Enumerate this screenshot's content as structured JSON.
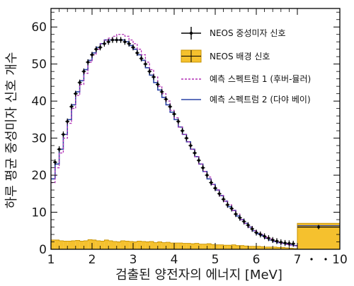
{
  "chart_data": {
    "type": "line",
    "xlabel": "검출된 양전자의 에너지 [MeV]",
    "ylabel": "하루 평균 중성미자 신호 개수",
    "xlim": [
      1,
      10
    ],
    "ylim": [
      0,
      65
    ],
    "x_ticks": [
      1,
      2,
      3,
      4,
      5,
      6,
      7,
      10
    ],
    "x_tick_labels": [
      "1",
      "2",
      "3",
      "4",
      "5",
      "6",
      "7",
      "10"
    ],
    "x_axis_note": "axis compressed between 7 and 10 (single last bin)",
    "y_ticks": [
      0,
      10,
      20,
      30,
      40,
      50,
      60
    ],
    "grid": false,
    "legend_position": "top-right",
    "colors": {
      "data": "#000000",
      "background_fill": "#f5c12e",
      "background_edge": "#c79200",
      "prediction_huber_mueller": "#b02fb5",
      "prediction_daya_bay": "#2a43a6"
    },
    "legend": [
      {
        "key": "data",
        "label": "NEOS 중성미자 신호",
        "style": "point-errorbar"
      },
      {
        "key": "background",
        "label": "NEOS 배경 신호",
        "style": "filled-box"
      },
      {
        "key": "huber_mueller",
        "label": "예측 스펙트럼 1 (후버-뮬러)",
        "style": "dashed-line"
      },
      {
        "key": "daya_bay",
        "label": "예측 스펙트럼 2 (다야 베이)",
        "style": "solid-step"
      }
    ],
    "series": [
      {
        "key": "data",
        "name": "NEOS 중성미자 신호",
        "x": [
          1.1,
          1.2,
          1.3,
          1.4,
          1.5,
          1.6,
          1.7,
          1.8,
          1.9,
          2.0,
          2.1,
          2.2,
          2.3,
          2.4,
          2.5,
          2.6,
          2.7,
          2.8,
          2.9,
          3.0,
          3.1,
          3.2,
          3.3,
          3.4,
          3.5,
          3.6,
          3.7,
          3.8,
          3.9,
          4.0,
          4.1,
          4.2,
          4.3,
          4.4,
          4.5,
          4.6,
          4.7,
          4.8,
          4.9,
          5.0,
          5.1,
          5.2,
          5.3,
          5.4,
          5.5,
          5.6,
          5.7,
          5.8,
          5.9,
          6.0,
          6.1,
          6.2,
          6.3,
          6.4,
          6.5,
          6.6,
          6.7,
          6.8,
          6.9,
          8.5
        ],
        "y": [
          23.5,
          27.0,
          31.0,
          34.5,
          38.5,
          42.0,
          45.0,
          48.0,
          50.5,
          52.5,
          54.0,
          54.5,
          55.5,
          56.0,
          56.5,
          56.5,
          56.5,
          56.0,
          55.5,
          54.5,
          53.0,
          51.5,
          50.0,
          48.0,
          46.5,
          44.5,
          42.5,
          40.5,
          38.5,
          36.5,
          34.5,
          32.0,
          30.0,
          28.0,
          26.0,
          24.0,
          22.0,
          20.0,
          18.0,
          16.5,
          15.0,
          13.5,
          12.0,
          11.0,
          9.5,
          8.5,
          7.5,
          6.5,
          5.5,
          4.5,
          4.0,
          3.5,
          3.0,
          2.5,
          2.2,
          1.9,
          1.7,
          1.6,
          1.5,
          6.0
        ]
      },
      {
        "key": "background",
        "name": "NEOS 배경 신호",
        "x": [
          1.05,
          1.15,
          1.25,
          1.35,
          1.45,
          1.55,
          1.65,
          1.75,
          1.85,
          1.95,
          2.05,
          2.15,
          2.25,
          2.35,
          2.45,
          2.55,
          2.65,
          2.75,
          2.85,
          2.95,
          3.05,
          3.15,
          3.25,
          3.35,
          3.45,
          3.55,
          3.65,
          3.75,
          3.85,
          3.95,
          4.05,
          4.15,
          4.25,
          4.35,
          4.45,
          4.55,
          4.65,
          4.75,
          4.85,
          4.95,
          5.05,
          5.15,
          5.25,
          5.35,
          5.45,
          5.55,
          5.65,
          5.75,
          5.85,
          5.95,
          6.05,
          6.15,
          6.25,
          6.35,
          6.45,
          6.55,
          6.65,
          6.75,
          6.85,
          6.95,
          8.5
        ],
        "y": [
          2.5,
          2.5,
          2.3,
          2.2,
          2.2,
          2.3,
          2.4,
          2.2,
          2.3,
          2.6,
          2.5,
          2.3,
          2.2,
          2.5,
          2.3,
          2.1,
          2.0,
          2.3,
          2.2,
          2.1,
          2.0,
          2.2,
          2.1,
          2.0,
          2.1,
          1.8,
          2.0,
          1.8,
          1.9,
          1.7,
          1.7,
          1.7,
          1.6,
          1.6,
          1.5,
          1.6,
          1.4,
          1.4,
          1.5,
          1.3,
          1.2,
          1.2,
          1.1,
          1.1,
          1.2,
          1.0,
          1.0,
          0.9,
          0.8,
          0.8,
          0.8,
          0.7,
          0.6,
          0.6,
          0.6,
          0.5,
          0.5,
          0.4,
          0.3,
          0.2,
          7.0
        ]
      },
      {
        "key": "huber_mueller",
        "name": "예측 스펙트럼 1 (후버-뮬러)",
        "x": [
          1.0,
          1.1,
          1.2,
          1.3,
          1.4,
          1.5,
          1.6,
          1.7,
          1.8,
          1.9,
          2.0,
          2.1,
          2.2,
          2.3,
          2.4,
          2.5,
          2.6,
          2.7,
          2.8,
          2.9,
          3.0,
          3.1,
          3.2,
          3.3,
          3.4,
          3.5,
          3.6,
          3.7,
          3.8,
          3.9,
          4.0,
          4.1,
          4.2,
          4.3,
          4.4,
          4.5,
          4.6,
          4.7,
          4.8,
          4.9,
          5.0,
          5.1,
          5.2,
          5.3,
          5.4,
          5.5,
          5.6,
          5.7,
          5.8,
          5.9,
          6.0,
          6.1,
          6.2,
          6.3,
          6.4,
          6.5,
          6.6,
          6.7,
          6.8,
          6.9,
          7.0
        ],
        "y": [
          18.0,
          22.0,
          26.0,
          30.0,
          34.0,
          38.0,
          41.5,
          44.5,
          47.5,
          50.5,
          52.5,
          54.0,
          55.5,
          56.5,
          57.0,
          57.5,
          58.0,
          58.0,
          57.5,
          56.5,
          55.5,
          54.0,
          52.5,
          50.5,
          48.5,
          46.5,
          44.0,
          42.0,
          40.0,
          37.5,
          35.5,
          33.0,
          31.0,
          29.0,
          27.0,
          25.0,
          23.0,
          21.0,
          19.5,
          17.5,
          16.0,
          14.5,
          13.0,
          12.0,
          10.5,
          9.5,
          8.0,
          7.0,
          6.0,
          5.0,
          4.5,
          4.0,
          3.2,
          2.8,
          2.3,
          1.9,
          1.6,
          1.3,
          1.1,
          0.9,
          0.8
        ]
      },
      {
        "key": "daya_bay",
        "name": "예측 스펙트럼 2 (다야 베이)",
        "x": [
          1.0,
          1.1,
          1.2,
          1.3,
          1.4,
          1.5,
          1.6,
          1.7,
          1.8,
          1.9,
          2.0,
          2.1,
          2.2,
          2.3,
          2.4,
          2.5,
          2.6,
          2.7,
          2.8,
          2.9,
          3.0,
          3.1,
          3.2,
          3.3,
          3.4,
          3.5,
          3.6,
          3.7,
          3.8,
          3.9,
          4.0,
          4.1,
          4.2,
          4.3,
          4.4,
          4.5,
          4.6,
          4.7,
          4.8,
          4.9,
          5.0,
          5.1,
          5.2,
          5.3,
          5.4,
          5.5,
          5.6,
          5.7,
          5.8,
          5.9,
          6.0,
          6.1,
          6.2,
          6.3,
          6.4,
          6.5,
          6.6,
          6.7,
          6.8,
          6.9,
          7.0
        ],
        "y": [
          19.0,
          23.0,
          27.0,
          31.0,
          35.0,
          39.0,
          42.5,
          45.5,
          48.5,
          51.0,
          53.0,
          54.5,
          55.5,
          56.5,
          56.5,
          56.5,
          56.5,
          56.5,
          56.0,
          55.0,
          54.0,
          52.5,
          51.0,
          49.0,
          47.0,
          45.0,
          43.0,
          41.0,
          39.0,
          37.0,
          35.0,
          33.0,
          31.0,
          29.0,
          27.0,
          25.0,
          23.0,
          21.0,
          19.0,
          17.5,
          16.0,
          14.5,
          13.0,
          11.5,
          10.5,
          9.0,
          8.0,
          7.0,
          6.0,
          5.0,
          4.2,
          3.7,
          3.0,
          2.5,
          2.1,
          1.8,
          1.6,
          1.4,
          1.2,
          1.0,
          0.9
        ]
      }
    ],
    "error_bars": {
      "data_y_err": 0.8,
      "last_bin_y_err": 0.6,
      "last_bin_x_range": [
        7,
        10
      ]
    }
  }
}
